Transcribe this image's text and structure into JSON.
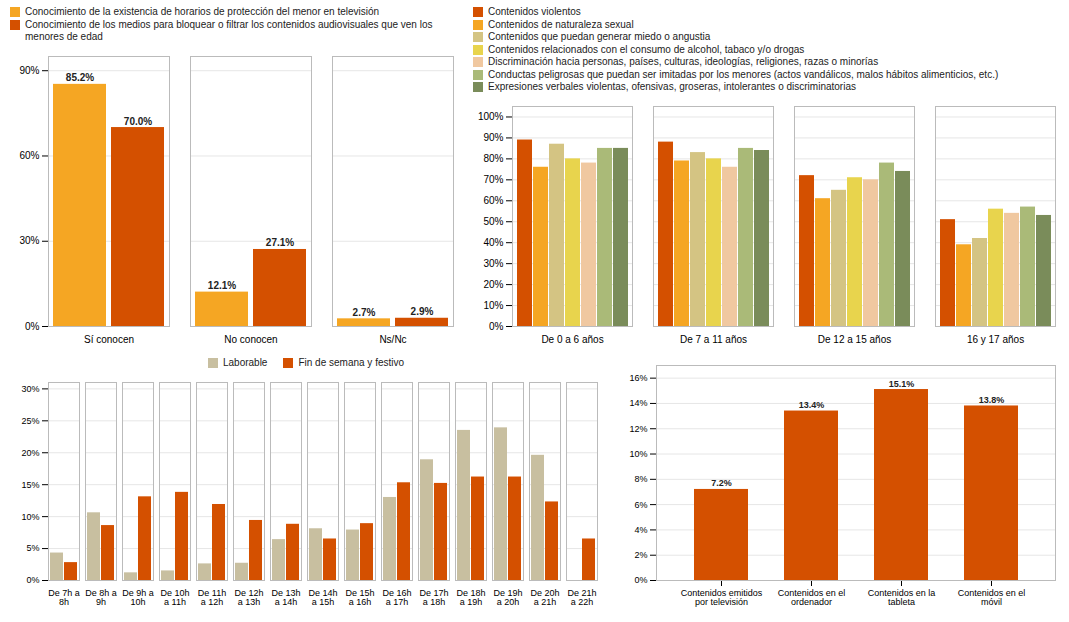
{
  "chart_data": [
    {
      "type": "bar",
      "categories": [
        "Sí conocen",
        "No conocen",
        "Ns/Nc"
      ],
      "series": [
        {
          "name": "Conocimiento de la existencia de horarios de protección del menor en televisión",
          "color": "#F5A623",
          "values": [
            85.2,
            12.1,
            2.7
          ],
          "value_labels": [
            "85.2%",
            "12.1%",
            "2.7%"
          ]
        },
        {
          "name": "Conocimiento de los medios para bloquear o filtrar los contenidos audiovisuales que ven los menores de edad",
          "color": "#D45000",
          "values": [
            70.0,
            27.1,
            2.9
          ],
          "value_labels": [
            "70.0%",
            "27.1%",
            "2.9%"
          ]
        }
      ],
      "ylim": [
        0,
        95
      ],
      "yticks": [
        {
          "value": 0,
          "label": "0%"
        },
        {
          "value": 30,
          "label": "30%"
        },
        {
          "value": 60,
          "label": "60%"
        },
        {
          "value": 90,
          "label": "90%"
        }
      ],
      "grid": true,
      "legend": "upper left",
      "data_labels": true
    },
    {
      "type": "bar",
      "categories": [
        "De 0 a 6 años",
        "De 7 a 11 años",
        "De 12 a 15 años",
        "16 y 17 años"
      ],
      "series": [
        {
          "name": "Contenidos violentos",
          "color": "#D45000",
          "values": [
            89,
            88,
            72,
            51
          ]
        },
        {
          "name": "Contenidos de naturaleza sexual",
          "color": "#F5A623",
          "values": [
            76,
            79,
            61,
            39
          ]
        },
        {
          "name": "Contenidos que puedan generar miedo o angustia",
          "color": "#D4C483",
          "values": [
            87,
            83,
            65,
            42
          ]
        },
        {
          "name": "Contenidos relacionados con el consumo de alcohol, tabaco y/o drogas",
          "color": "#E8D44D",
          "values": [
            80,
            80,
            71,
            56
          ]
        },
        {
          "name": "Discriminación hacia personas, países, culturas, ideologías, religiones, razas o minorías",
          "color": "#F0C8A0",
          "values": [
            78,
            76,
            70,
            54
          ]
        },
        {
          "name": "Conductas peligrosas que puedan ser imitadas por los menores (actos vandálicos, malos hábitos alimenticios, etc.)",
          "color": "#AABA78",
          "values": [
            85,
            85,
            78,
            57
          ]
        },
        {
          "name": "Expresiones verbales violentas, ofensivas, groseras, intolerantes o discriminatorias",
          "color": "#7A8C5A",
          "values": [
            85,
            84,
            74,
            53
          ]
        }
      ],
      "ylim": [
        0,
        105
      ],
      "yticks": [
        {
          "value": 0,
          "label": "0%"
        },
        {
          "value": 10,
          "label": "10%"
        },
        {
          "value": 20,
          "label": "20%"
        },
        {
          "value": 30,
          "label": "30%"
        },
        {
          "value": 40,
          "label": "40%"
        },
        {
          "value": 50,
          "label": "50%"
        },
        {
          "value": 60,
          "label": "60%"
        },
        {
          "value": 70,
          "label": "70%"
        },
        {
          "value": 80,
          "label": "80%"
        },
        {
          "value": 90,
          "label": "90%"
        },
        {
          "value": 100,
          "label": "100%"
        }
      ],
      "grid": true,
      "legend": "upper left"
    },
    {
      "type": "bar",
      "categories": [
        "De 7h a\n8h",
        "De 8h a\n9h",
        "De 9h a\n10h",
        "De 10h\na 11h",
        "De 11h\na 12h",
        "De 12h\na 13h",
        "De 13h\na 14h",
        "De 14h\na 15h",
        "De 15h\na 16h",
        "De 16h\na 17h",
        "De 17h\na 18h",
        "De 18h\na 19h",
        "De 19h\na 20h",
        "De 20h\na 21h",
        "De 21h\na 22h"
      ],
      "series": [
        {
          "name": "Laborable",
          "color": "#C8BFA0",
          "values": [
            4.3,
            10.6,
            1.2,
            1.5,
            2.6,
            2.7,
            6.4,
            8.1,
            7.9,
            13.0,
            18.9,
            23.5,
            23.9,
            19.6,
            0.0
          ]
        },
        {
          "name": "Fin de semana y festivo",
          "color": "#D45000",
          "values": [
            2.8,
            8.6,
            13.1,
            13.8,
            11.9,
            9.4,
            8.8,
            6.5,
            8.9,
            15.3,
            15.2,
            16.2,
            16.2,
            12.3,
            6.5
          ]
        }
      ],
      "ylim": [
        0,
        31
      ],
      "yticks": [
        {
          "value": 0,
          "label": "0%"
        },
        {
          "value": 5,
          "label": "5%"
        },
        {
          "value": 10,
          "label": "10%"
        },
        {
          "value": 15,
          "label": "15%"
        },
        {
          "value": 20,
          "label": "20%"
        },
        {
          "value": 25,
          "label": "25%"
        },
        {
          "value": 30,
          "label": "30%"
        }
      ],
      "grid": true,
      "legend": "upper center"
    },
    {
      "type": "bar",
      "categories": [
        "Contenidos emitidos\npor televisión",
        "Contenidos en el\nordenador",
        "Contenidos en la\ntableta",
        "Contenidos en el\nmóvil"
      ],
      "values": [
        7.2,
        13.4,
        15.1,
        13.8
      ],
      "value_labels": [
        "7.2%",
        "13.4%",
        "15.1%",
        "13.8%"
      ],
      "color": "#D45000",
      "ylim": [
        0,
        17
      ],
      "yticks": [
        {
          "value": 0,
          "label": "0%"
        },
        {
          "value": 2,
          "label": "2%"
        },
        {
          "value": 4,
          "label": "4%"
        },
        {
          "value": 6,
          "label": "6%"
        },
        {
          "value": 8,
          "label": "8%"
        },
        {
          "value": 10,
          "label": "10%"
        },
        {
          "value": 12,
          "label": "12%"
        },
        {
          "value": 14,
          "label": "14%"
        },
        {
          "value": 16,
          "label": "16%"
        }
      ],
      "grid": true,
      "data_labels": true
    }
  ]
}
